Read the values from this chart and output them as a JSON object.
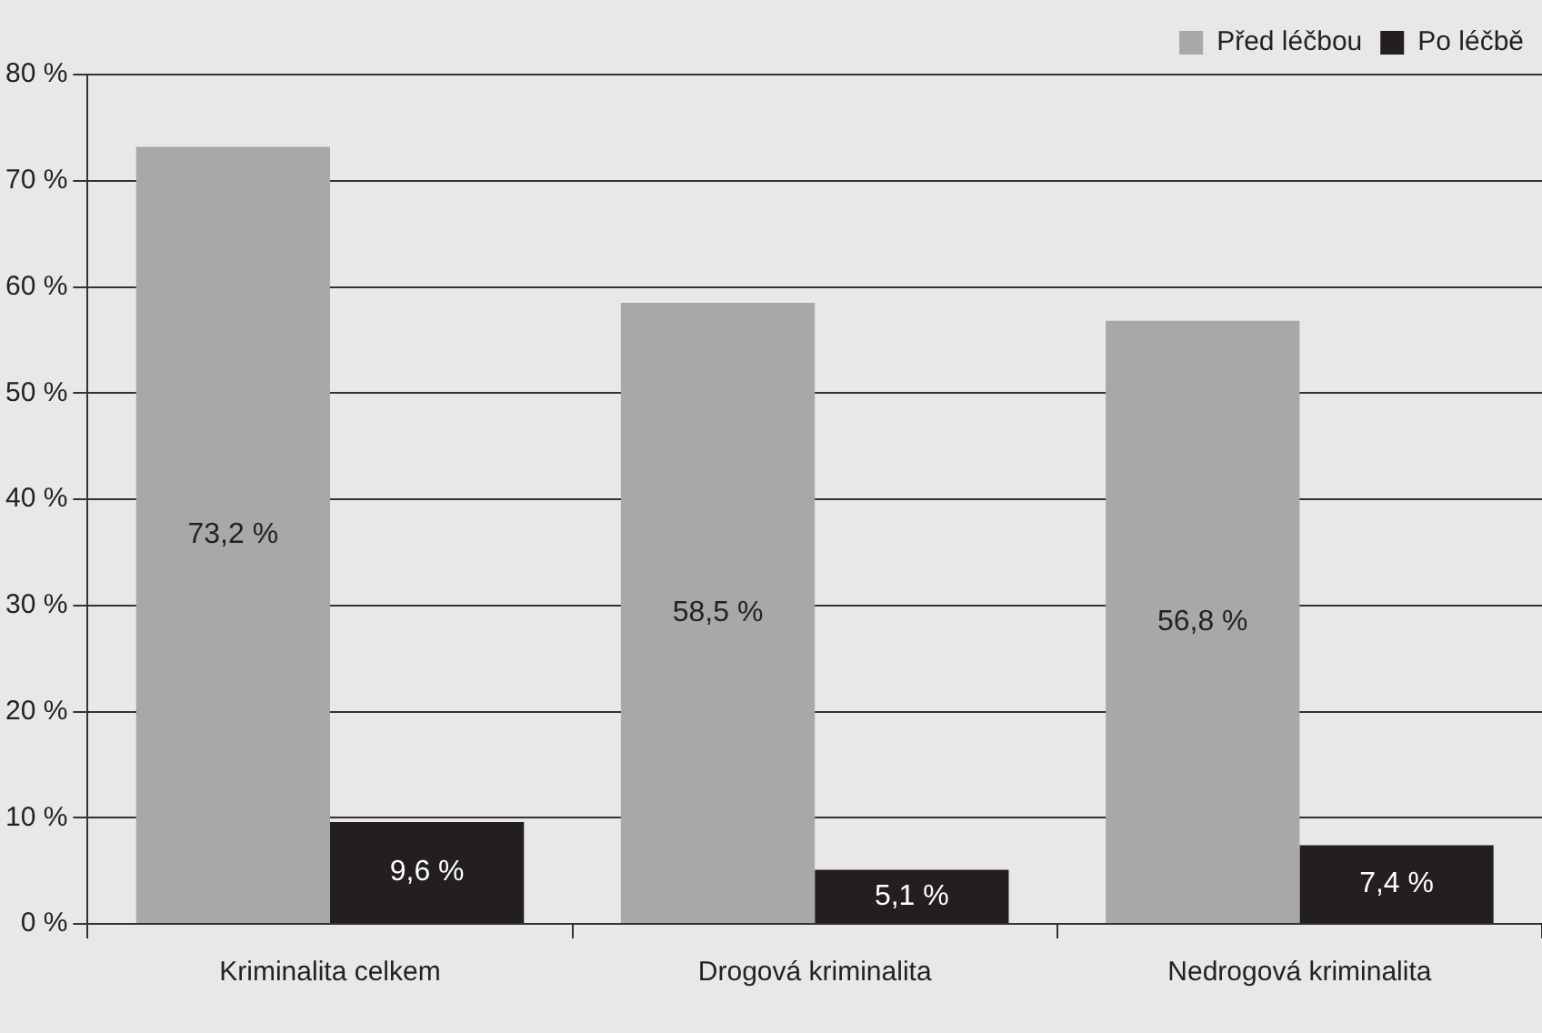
{
  "chart_data": {
    "type": "bar",
    "categories": [
      "Kriminalita celkem",
      "Drogová kriminalita",
      "Nedrogová kriminalita"
    ],
    "series": [
      {
        "name": "Před léčbou",
        "color": "#a7a8aa",
        "values": [
          73.2,
          58.5,
          56.8
        ],
        "value_labels": [
          "73,2 %",
          "58,5 %",
          "56,8 %"
        ]
      },
      {
        "name": "Po léčbě",
        "color": "#231f20",
        "values": [
          9.6,
          5.1,
          7.4
        ],
        "value_labels": [
          "9,6 %",
          "5,1 %",
          "7,4 %"
        ]
      }
    ],
    "ylim": [
      0,
      80
    ],
    "yticks": [
      {
        "value": 0,
        "label": "0 %"
      },
      {
        "value": 10,
        "label": "10 %"
      },
      {
        "value": 20,
        "label": "20 %"
      },
      {
        "value": 30,
        "label": "30 %"
      },
      {
        "value": 40,
        "label": "40 %"
      },
      {
        "value": 50,
        "label": "50 %"
      },
      {
        "value": 60,
        "label": "60 %"
      },
      {
        "value": 70,
        "label": "70 %"
      },
      {
        "value": 80,
        "label": "80 %"
      }
    ],
    "grid": "y",
    "legend": "top right"
  }
}
